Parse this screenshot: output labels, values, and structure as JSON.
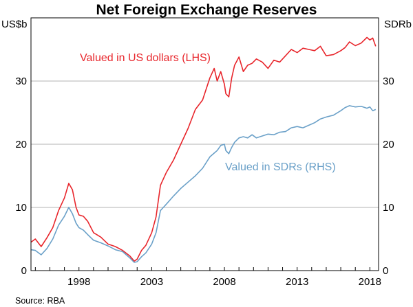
{
  "chart_data": {
    "type": "line",
    "title": "Net Foreign Exchange Reserves",
    "y_left_unit": "US$b",
    "y_right_unit": "SDRb",
    "ylim": [
      0,
      40
    ],
    "y_ticks": [
      0,
      10,
      20,
      30
    ],
    "y_tick_labels": [
      "0",
      "10",
      "20",
      "30"
    ],
    "xlim": [
      1994.7,
      2018.6
    ],
    "x_ticks": [
      1998,
      2003,
      2008,
      2013,
      2018
    ],
    "x_tick_labels": [
      "1998",
      "2003",
      "2008",
      "2013",
      "2018"
    ],
    "grid": true,
    "source": "Source:   RBA",
    "colors": {
      "usd": "#e8252b",
      "sdr": "#6aa0c8"
    },
    "series": [
      {
        "name": "Valued in US dollars (LHS)",
        "label": "Valued in US dollars (LHS)",
        "color": "#e8252b",
        "x": [
          1994.7,
          1995.0,
          1995.4,
          1995.8,
          1996.2,
          1996.6,
          1997.0,
          1997.3,
          1997.55,
          1997.8,
          1998.0,
          1998.3,
          1998.6,
          1999.0,
          1999.5,
          2000.0,
          2000.5,
          2001.0,
          2001.5,
          2001.8,
          2002.0,
          2002.3,
          2002.6,
          2003.0,
          2003.3,
          2003.6,
          2003.8,
          2004.0,
          2004.5,
          2005.0,
          2005.5,
          2006.0,
          2006.5,
          2007.0,
          2007.3,
          2007.5,
          2007.75,
          2008.0,
          2008.1,
          2008.3,
          2008.5,
          2008.7,
          2009.0,
          2009.3,
          2009.6,
          2009.9,
          2010.2,
          2010.6,
          2011.0,
          2011.4,
          2011.8,
          2012.2,
          2012.6,
          2013.0,
          2013.4,
          2013.8,
          2014.2,
          2014.6,
          2015.0,
          2015.5,
          2016.0,
          2016.3,
          2016.6,
          2017.0,
          2017.4,
          2017.8,
          2018.0,
          2018.2,
          2018.4
        ],
        "values": [
          4.5,
          5.0,
          3.8,
          5.2,
          6.8,
          9.5,
          11.5,
          13.8,
          12.8,
          10.0,
          8.8,
          8.6,
          7.8,
          6.0,
          5.3,
          4.2,
          3.8,
          3.2,
          2.3,
          1.5,
          1.8,
          3.2,
          4.0,
          6.0,
          8.5,
          13.5,
          14.5,
          15.5,
          17.5,
          20.0,
          22.5,
          25.5,
          27.0,
          30.5,
          32.0,
          30.0,
          31.5,
          29.5,
          28.0,
          27.5,
          30.5,
          32.5,
          33.8,
          31.5,
          32.5,
          32.8,
          33.5,
          33.0,
          32.0,
          33.3,
          33.0,
          34.0,
          35.0,
          34.5,
          35.2,
          35.0,
          34.8,
          35.5,
          34.0,
          34.2,
          34.8,
          35.3,
          36.2,
          35.6,
          36.0,
          36.9,
          36.5,
          36.8,
          35.5
        ]
      },
      {
        "name": "Valued in SDRs (RHS)",
        "label": "Valued in SDRs (RHS)",
        "color": "#6aa0c8",
        "x": [
          1994.7,
          1995.0,
          1995.4,
          1995.8,
          1996.2,
          1996.6,
          1997.0,
          1997.3,
          1997.55,
          1997.8,
          1998.0,
          1998.3,
          1998.6,
          1999.0,
          1999.5,
          2000.0,
          2000.5,
          2001.0,
          2001.5,
          2001.8,
          2002.0,
          2002.3,
          2002.6,
          2003.0,
          2003.3,
          2003.6,
          2003.8,
          2004.0,
          2004.5,
          2005.0,
          2005.5,
          2006.0,
          2006.5,
          2007.0,
          2007.3,
          2007.5,
          2007.75,
          2008.0,
          2008.1,
          2008.3,
          2008.5,
          2008.7,
          2009.0,
          2009.3,
          2009.6,
          2009.9,
          2010.2,
          2010.6,
          2011.0,
          2011.4,
          2011.8,
          2012.2,
          2012.6,
          2013.0,
          2013.4,
          2013.8,
          2014.2,
          2014.6,
          2015.0,
          2015.5,
          2016.0,
          2016.3,
          2016.6,
          2017.0,
          2017.4,
          2017.8,
          2018.0,
          2018.2,
          2018.4
        ],
        "values": [
          3.3,
          3.2,
          2.5,
          3.5,
          5.0,
          7.2,
          8.6,
          10.0,
          9.0,
          7.5,
          6.8,
          6.4,
          5.7,
          4.8,
          4.4,
          3.9,
          3.3,
          3.0,
          2.0,
          1.3,
          1.4,
          2.2,
          2.8,
          4.2,
          6.0,
          9.5,
          10.0,
          10.5,
          11.8,
          13.0,
          14.0,
          15.0,
          16.2,
          18.0,
          18.6,
          19.0,
          19.8,
          20.0,
          19.0,
          18.5,
          19.5,
          20.3,
          21.0,
          21.2,
          21.0,
          21.5,
          21.0,
          21.3,
          21.6,
          21.5,
          21.9,
          22.0,
          22.6,
          22.8,
          22.6,
          23.0,
          23.4,
          24.0,
          24.3,
          24.6,
          25.3,
          25.8,
          26.1,
          25.9,
          26.0,
          25.7,
          25.9,
          25.3,
          25.5
        ]
      }
    ]
  }
}
